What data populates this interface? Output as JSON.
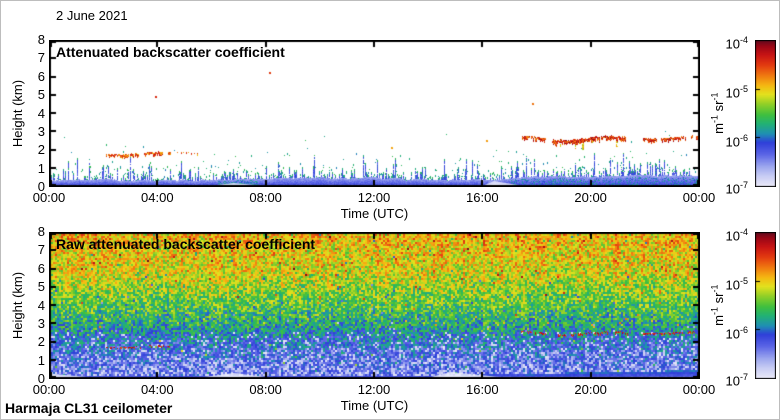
{
  "header": {
    "date_label": "2 June 2021"
  },
  "footer": {
    "instrument": "Harmaja CL31 ceilometer"
  },
  "colormap": {
    "stops": [
      [
        0,
        "#eaeaf8"
      ],
      [
        0.07,
        "#c9cdf4"
      ],
      [
        0.14,
        "#9aa4ee"
      ],
      [
        0.22,
        "#5a64e6"
      ],
      [
        0.3,
        "#2f3fd9"
      ],
      [
        0.36,
        "#1f8fb4"
      ],
      [
        0.43,
        "#22b273"
      ],
      [
        0.49,
        "#3fbf3f"
      ],
      [
        0.56,
        "#8ccf28"
      ],
      [
        0.63,
        "#e3e11e"
      ],
      [
        0.69,
        "#f5b912"
      ],
      [
        0.76,
        "#f07810"
      ],
      [
        0.83,
        "#e33b10"
      ],
      [
        0.9,
        "#c81414"
      ],
      [
        0.96,
        "#9b0716"
      ],
      [
        1,
        "#5f0a1e"
      ]
    ]
  },
  "chart_data": [
    {
      "type": "heatmap",
      "render": "processed",
      "title": "Attenuated backscatter coefficient",
      "xlabel": "Time (UTC)",
      "ylabel": "Height (km)",
      "x_ticks": [
        "00:00",
        "04:00",
        "08:00",
        "12:00",
        "16:00",
        "20:00",
        "00:00"
      ],
      "x_hours": [
        0,
        24
      ],
      "y_ticks": [
        0,
        1,
        2,
        3,
        4,
        5,
        6,
        7,
        8
      ],
      "ylim": [
        0,
        8
      ],
      "colorbar": {
        "unit_parts": [
          "m",
          "-1",
          " sr",
          "-1"
        ],
        "range_log10": [
          -7,
          -4
        ],
        "ticks": [
          {
            "base": "10",
            "exp": "-4",
            "frac": 1
          },
          {
            "base": "10",
            "exp": "-5",
            "frac": 0.6667
          },
          {
            "base": "10",
            "exp": "-6",
            "frac": 0.3333
          },
          {
            "base": "10",
            "exp": "-7",
            "frac": 0
          }
        ]
      },
      "features": {
        "boundary_layer": {
          "top_km": [
            [
              0,
              0.34
            ],
            [
              5,
              0.33
            ],
            [
              7,
              0.4
            ],
            [
              9,
              0.48
            ],
            [
              12,
              0.45
            ],
            [
              13.5,
              0.36
            ],
            [
              16.5,
              0.38
            ],
            [
              17.5,
              0.52
            ],
            [
              20,
              0.55
            ],
            [
              22,
              0.62
            ],
            [
              24,
              0.55
            ]
          ],
          "spike_probability": 0.6,
          "spike_scale_km": 0.3,
          "spike_max_km": 1.5,
          "teal_zones": [
            [
              6.2,
              7.7,
              0.5
            ],
            [
              17,
              24,
              0.28
            ]
          ]
        },
        "clouds": [
          {
            "t0": 2.1,
            "t1": 4.45,
            "height_km": 1.78,
            "thickness_km": 0.17,
            "density": 0.93,
            "wiggle_km": 0.07,
            "v0": 0.66,
            "v1": 0.93
          },
          {
            "t0": 4.45,
            "t1": 5.7,
            "height_km": 1.85,
            "thickness_km": 0.1,
            "density": 0.3,
            "wiggle_km": 0.05,
            "v0": 0.66,
            "v1": 0.9
          },
          {
            "t0": 17.45,
            "t1": 18.3,
            "height_km": 2.62,
            "thickness_km": 0.2,
            "density": 0.85,
            "wiggle_km": 0.09,
            "v0": 0.72,
            "v1": 0.98
          },
          {
            "t0": 18.55,
            "t1": 21.25,
            "height_km": 2.6,
            "thickness_km": 0.24,
            "density": 0.9,
            "wiggle_km": 0.12,
            "tufts": true,
            "v0": 0.72,
            "v1": 0.98
          },
          {
            "t0": 21.9,
            "t1": 24,
            "height_km": 2.66,
            "thickness_km": 0.2,
            "density": 0.9,
            "wiggle_km": 0.08,
            "v0": 0.72,
            "v1": 0.98
          }
        ],
        "isolated_echoes": [
          [
            3.9,
            4.9
          ],
          [
            8.1,
            6.2
          ],
          [
            12.6,
            2.1
          ],
          [
            16.1,
            2.5
          ],
          [
            17.8,
            4.5
          ]
        ],
        "clear_wedges": [
          [
            15.9,
            16.4,
            17.7,
            0.32
          ],
          [
            5.6,
            6.8,
            8.4,
            0.22
          ]
        ],
        "scatter_dots": {
          "count": 300,
          "max_height_km": 3.4
        }
      }
    },
    {
      "type": "heatmap",
      "render": "raw",
      "title": "Raw attenuated backscatter coefficient",
      "xlabel": "Time (UTC)",
      "ylabel": "Height (km)",
      "x_ticks": [
        "00:00",
        "04:00",
        "08:00",
        "12:00",
        "16:00",
        "20:00",
        "00:00"
      ],
      "x_hours": [
        0,
        24
      ],
      "y_ticks": [
        0,
        1,
        2,
        3,
        4,
        5,
        6,
        7,
        8
      ],
      "ylim": [
        0,
        8
      ],
      "colorbar": {
        "unit_parts": [
          "m",
          "-1",
          " sr",
          "-1"
        ],
        "range_log10": [
          -7,
          -4
        ],
        "ticks": [
          {
            "base": "10",
            "exp": "-4",
            "frac": 1
          },
          {
            "base": "10",
            "exp": "-5",
            "frac": 0.6667
          },
          {
            "base": "10",
            "exp": "-6",
            "frac": 0.3333
          },
          {
            "base": "10",
            "exp": "-7",
            "frac": 0
          }
        ]
      },
      "features": {
        "noise_profile": [
          [
            0,
            0.19
          ],
          [
            0.5,
            0.21
          ],
          [
            1,
            0.235
          ],
          [
            1.5,
            0.265
          ],
          [
            2,
            0.3
          ],
          [
            2.5,
            0.355
          ],
          [
            3,
            0.42
          ],
          [
            4,
            0.5
          ],
          [
            5,
            0.575
          ],
          [
            6,
            0.635
          ],
          [
            7,
            0.665
          ],
          [
            8,
            0.69
          ]
        ],
        "noise_jitter": 0.27,
        "column_banding": 0.09,
        "white_speckle": {
          "max_height_km": 2.6,
          "p_at_ground": 0.19,
          "p_at_top": 0.05
        },
        "smooth_bottom_km": [
          [
            0,
            0.24
          ],
          [
            14,
            0.22
          ],
          [
            17,
            0.3
          ],
          [
            20,
            0.42
          ],
          [
            24,
            0.52
          ]
        ],
        "clouds": [
          {
            "t0": 2.1,
            "t1": 4.5,
            "height_km": 1.72,
            "thickness_km": 0.09,
            "density": 0.55,
            "wiggle_km": 0.05,
            "v0": 0.8,
            "v1": 0.95
          },
          {
            "t0": 17.4,
            "t1": 18.3,
            "height_km": 2.48,
            "thickness_km": 0.1,
            "density": 0.5,
            "wiggle_km": 0.06,
            "v0": 0.8,
            "v1": 0.95
          },
          {
            "t0": 18.5,
            "t1": 21.3,
            "height_km": 2.45,
            "thickness_km": 0.12,
            "density": 0.6,
            "wiggle_km": 0.07,
            "v0": 0.8,
            "v1": 0.95
          },
          {
            "t0": 21.9,
            "t1": 24,
            "height_km": 2.5,
            "thickness_km": 0.1,
            "density": 0.65,
            "wiggle_km": 0.05,
            "v0": 0.8,
            "v1": 0.95
          }
        ],
        "clear_wedges": [
          [
            0,
            0,
            2.2,
            0.3
          ],
          [
            5.2,
            6.8,
            8.6,
            0.32
          ],
          [
            13.8,
            14.8,
            17.3,
            0.38
          ]
        ]
      }
    }
  ]
}
